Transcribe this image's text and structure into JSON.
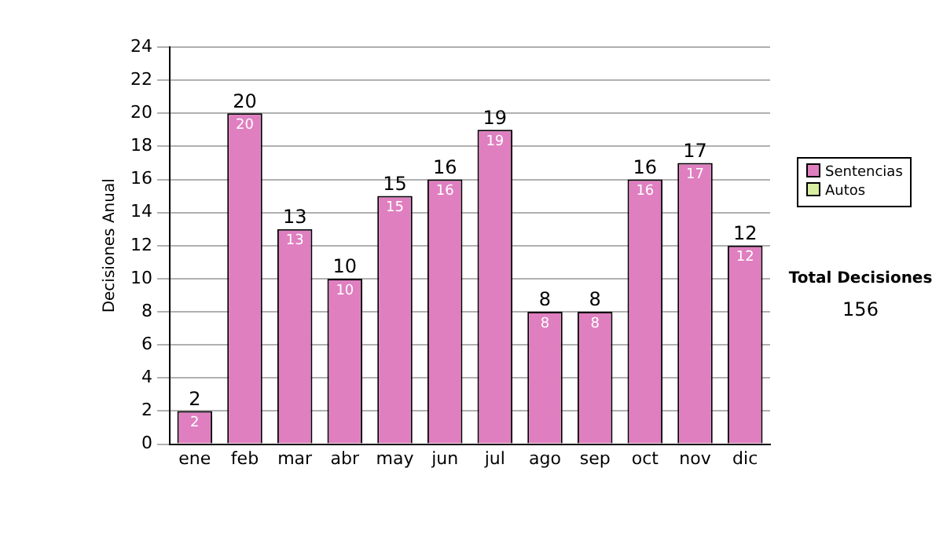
{
  "chart_data": {
    "type": "bar",
    "ylabel": "Decisiones Anual",
    "categories": [
      "ene",
      "feb",
      "mar",
      "abr",
      "may",
      "jun",
      "jul",
      "ago",
      "sep",
      "oct",
      "nov",
      "dic"
    ],
    "series": [
      {
        "name": "Sentencias",
        "color": "#df7fc0",
        "values": [
          2,
          20,
          13,
          10,
          15,
          16,
          19,
          8,
          8,
          16,
          17,
          12
        ]
      },
      {
        "name": "Autos",
        "color": "#d8eea0",
        "values": [
          null,
          null,
          null,
          null,
          null,
          null,
          null,
          null,
          null,
          null,
          null,
          null
        ]
      }
    ],
    "stacked": true,
    "ylim": [
      0,
      24
    ],
    "yticks": [
      0,
      2,
      4,
      6,
      8,
      10,
      12,
      14,
      16,
      18,
      20,
      22,
      24
    ],
    "grid": "y",
    "legend": "right",
    "data_labels": true,
    "totals": [
      "2",
      "20",
      "13",
      "10",
      "15",
      "16",
      "19",
      "8",
      "8",
      "16",
      "17",
      "12"
    ],
    "annotations": [
      "Total Decisiones",
      "156"
    ]
  }
}
